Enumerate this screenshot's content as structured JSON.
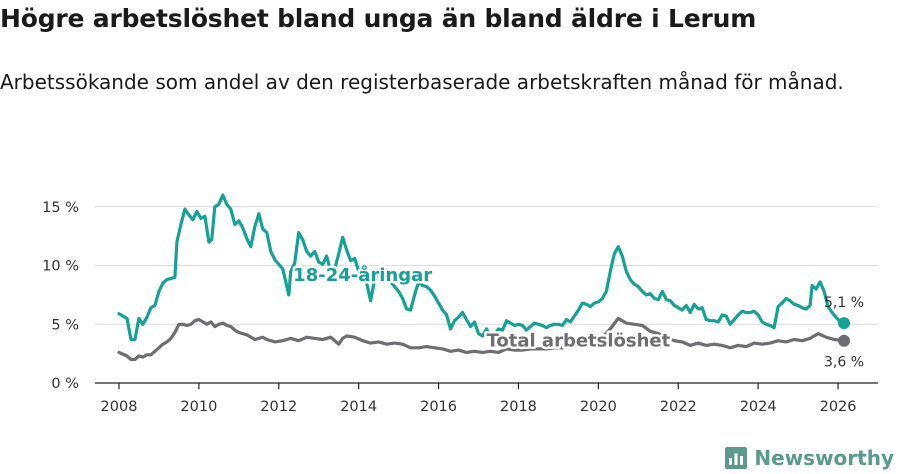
{
  "title": "Högre arbetslöshet bland unga än bland äldre i Lerum",
  "subtitle": "Arbetssökande som andel av den registerbaserade arbetskraften månad för månad.",
  "brand": {
    "name": "Newsworthy",
    "color": "#5a9a8c"
  },
  "chart_data": {
    "type": "line",
    "x_unit": "year",
    "x_ticks": [
      "2008",
      "2010",
      "2012",
      "2014",
      "2016",
      "2018",
      "2020",
      "2022",
      "2024",
      "2026"
    ],
    "y_ticks": [
      "0 %",
      "5 %",
      "10 %",
      "15 %"
    ],
    "xlim": [
      2007.4,
      2027.0
    ],
    "ylim": [
      0,
      16
    ],
    "grid": true,
    "series": [
      {
        "name": "18-24-åringar",
        "color": "#14a295",
        "end_label": "5,1 %",
        "points": [
          [
            2008.0,
            5.9
          ],
          [
            2008.2,
            5.5
          ],
          [
            2008.3,
            3.7
          ],
          [
            2008.4,
            3.7
          ],
          [
            2008.5,
            5.5
          ],
          [
            2008.6,
            5.0
          ],
          [
            2008.7,
            5.6
          ],
          [
            2008.8,
            6.4
          ],
          [
            2008.9,
            6.6
          ],
          [
            2009.0,
            7.8
          ],
          [
            2009.1,
            8.5
          ],
          [
            2009.2,
            8.8
          ],
          [
            2009.4,
            9.0
          ],
          [
            2009.45,
            12.0
          ],
          [
            2009.55,
            13.5
          ],
          [
            2009.65,
            14.8
          ],
          [
            2009.75,
            14.3
          ],
          [
            2009.85,
            13.9
          ],
          [
            2009.95,
            14.6
          ],
          [
            2010.05,
            14.0
          ],
          [
            2010.15,
            14.2
          ],
          [
            2010.25,
            12.0
          ],
          [
            2010.32,
            12.2
          ],
          [
            2010.4,
            15.0
          ],
          [
            2010.5,
            15.2
          ],
          [
            2010.6,
            16.0
          ],
          [
            2010.7,
            15.2
          ],
          [
            2010.8,
            14.8
          ],
          [
            2010.9,
            13.5
          ],
          [
            2011.0,
            13.8
          ],
          [
            2011.1,
            13.2
          ],
          [
            2011.2,
            12.3
          ],
          [
            2011.3,
            11.6
          ],
          [
            2011.4,
            13.3
          ],
          [
            2011.5,
            14.4
          ],
          [
            2011.6,
            13.1
          ],
          [
            2011.7,
            12.8
          ],
          [
            2011.8,
            11.2
          ],
          [
            2011.9,
            10.5
          ],
          [
            2012.0,
            10.1
          ],
          [
            2012.1,
            9.7
          ],
          [
            2012.25,
            7.5
          ],
          [
            2012.3,
            9.5
          ],
          [
            2012.4,
            10.2
          ],
          [
            2012.5,
            12.8
          ],
          [
            2012.6,
            12.2
          ],
          [
            2012.7,
            11.2
          ],
          [
            2012.8,
            10.8
          ],
          [
            2012.9,
            11.2
          ],
          [
            2013.0,
            10.3
          ],
          [
            2013.1,
            10.1
          ],
          [
            2013.2,
            10.8
          ],
          [
            2013.3,
            9.5
          ],
          [
            2013.4,
            9.7
          ],
          [
            2013.5,
            11.0
          ],
          [
            2013.6,
            12.4
          ],
          [
            2013.7,
            11.3
          ],
          [
            2013.8,
            10.4
          ],
          [
            2013.9,
            10.6
          ],
          [
            2014.0,
            9.5
          ],
          [
            2014.1,
            9.2
          ],
          [
            2014.2,
            8.5
          ],
          [
            2014.3,
            7.0
          ],
          [
            2014.4,
            8.8
          ],
          [
            2014.5,
            9.3
          ],
          [
            2014.6,
            9.5
          ],
          [
            2014.7,
            9.3
          ],
          [
            2014.8,
            8.6
          ],
          [
            2014.9,
            8.2
          ],
          [
            2015.0,
            7.8
          ],
          [
            2015.1,
            7.2
          ],
          [
            2015.2,
            6.3
          ],
          [
            2015.3,
            6.2
          ],
          [
            2015.4,
            7.5
          ],
          [
            2015.5,
            8.6
          ],
          [
            2015.6,
            8.3
          ],
          [
            2015.7,
            8.2
          ],
          [
            2015.8,
            7.9
          ],
          [
            2015.9,
            7.4
          ],
          [
            2016.0,
            6.8
          ],
          [
            2016.1,
            6.2
          ],
          [
            2016.2,
            5.8
          ],
          [
            2016.3,
            4.6
          ],
          [
            2016.4,
            5.3
          ],
          [
            2016.5,
            5.6
          ],
          [
            2016.6,
            6.0
          ],
          [
            2016.7,
            5.4
          ],
          [
            2016.8,
            4.8
          ],
          [
            2016.9,
            5.2
          ],
          [
            2017.0,
            4.2
          ],
          [
            2017.1,
            4.0
          ],
          [
            2017.2,
            4.6
          ],
          [
            2017.3,
            4.0
          ],
          [
            2017.4,
            4.1
          ],
          [
            2017.5,
            4.6
          ],
          [
            2017.6,
            4.5
          ],
          [
            2017.7,
            5.3
          ],
          [
            2017.8,
            5.1
          ],
          [
            2017.9,
            4.9
          ],
          [
            2018.0,
            5.0
          ],
          [
            2018.1,
            4.9
          ],
          [
            2018.2,
            4.5
          ],
          [
            2018.3,
            4.8
          ],
          [
            2018.4,
            5.1
          ],
          [
            2018.5,
            5.0
          ],
          [
            2018.6,
            4.9
          ],
          [
            2018.7,
            4.7
          ],
          [
            2018.8,
            4.9
          ],
          [
            2018.9,
            5.0
          ],
          [
            2019.0,
            5.0
          ],
          [
            2019.1,
            4.9
          ],
          [
            2019.2,
            5.4
          ],
          [
            2019.3,
            5.2
          ],
          [
            2019.4,
            5.7
          ],
          [
            2019.5,
            6.2
          ],
          [
            2019.6,
            6.8
          ],
          [
            2019.7,
            6.7
          ],
          [
            2019.8,
            6.5
          ],
          [
            2019.9,
            6.8
          ],
          [
            2020.0,
            6.9
          ],
          [
            2020.1,
            7.2
          ],
          [
            2020.2,
            7.8
          ],
          [
            2020.3,
            9.5
          ],
          [
            2020.4,
            11.0
          ],
          [
            2020.5,
            11.6
          ],
          [
            2020.6,
            10.8
          ],
          [
            2020.7,
            9.5
          ],
          [
            2020.8,
            8.8
          ],
          [
            2020.9,
            8.4
          ],
          [
            2021.0,
            8.2
          ],
          [
            2021.1,
            7.8
          ],
          [
            2021.2,
            7.5
          ],
          [
            2021.3,
            7.6
          ],
          [
            2021.4,
            7.2
          ],
          [
            2021.5,
            7.1
          ],
          [
            2021.6,
            7.8
          ],
          [
            2021.7,
            7.1
          ],
          [
            2021.8,
            7.0
          ],
          [
            2021.9,
            6.6
          ],
          [
            2022.0,
            6.4
          ],
          [
            2022.1,
            6.2
          ],
          [
            2022.2,
            6.6
          ],
          [
            2022.3,
            6.0
          ],
          [
            2022.4,
            6.7
          ],
          [
            2022.5,
            6.3
          ],
          [
            2022.6,
            6.4
          ],
          [
            2022.7,
            5.4
          ],
          [
            2022.8,
            5.3
          ],
          [
            2022.9,
            5.3
          ],
          [
            2023.0,
            5.2
          ],
          [
            2023.1,
            5.8
          ],
          [
            2023.2,
            5.7
          ],
          [
            2023.3,
            5.0
          ],
          [
            2023.4,
            5.4
          ],
          [
            2023.5,
            5.8
          ],
          [
            2023.6,
            6.1
          ],
          [
            2023.7,
            6.0
          ],
          [
            2023.8,
            6.0
          ],
          [
            2023.9,
            6.1
          ],
          [
            2024.0,
            5.8
          ],
          [
            2024.1,
            5.2
          ],
          [
            2024.2,
            5.0
          ],
          [
            2024.3,
            4.9
          ],
          [
            2024.4,
            4.7
          ],
          [
            2024.5,
            6.5
          ],
          [
            2024.6,
            6.8
          ],
          [
            2024.7,
            7.2
          ],
          [
            2024.8,
            7.0
          ],
          [
            2024.9,
            6.7
          ],
          [
            2025.0,
            6.6
          ],
          [
            2025.1,
            6.4
          ],
          [
            2025.2,
            6.3
          ],
          [
            2025.3,
            6.6
          ],
          [
            2025.35,
            8.3
          ],
          [
            2025.45,
            8.0
          ],
          [
            2025.55,
            8.6
          ],
          [
            2025.65,
            7.8
          ],
          [
            2025.75,
            6.5
          ],
          [
            2025.85,
            6.0
          ],
          [
            2026.0,
            5.4
          ],
          [
            2026.15,
            5.1
          ]
        ]
      },
      {
        "name": "Total arbetslöshet",
        "color": "#6d6d72",
        "end_label": "3,6 %",
        "points": [
          [
            2008.0,
            2.6
          ],
          [
            2008.2,
            2.3
          ],
          [
            2008.3,
            2.0
          ],
          [
            2008.4,
            2.0
          ],
          [
            2008.5,
            2.3
          ],
          [
            2008.6,
            2.2
          ],
          [
            2008.7,
            2.4
          ],
          [
            2008.8,
            2.4
          ],
          [
            2008.9,
            2.7
          ],
          [
            2009.0,
            3.0
          ],
          [
            2009.1,
            3.3
          ],
          [
            2009.2,
            3.5
          ],
          [
            2009.3,
            3.8
          ],
          [
            2009.4,
            4.3
          ],
          [
            2009.5,
            5.0
          ],
          [
            2009.6,
            5.0
          ],
          [
            2009.7,
            4.9
          ],
          [
            2009.8,
            5.0
          ],
          [
            2009.9,
            5.3
          ],
          [
            2010.0,
            5.4
          ],
          [
            2010.1,
            5.2
          ],
          [
            2010.2,
            5.0
          ],
          [
            2010.3,
            5.2
          ],
          [
            2010.4,
            4.8
          ],
          [
            2010.5,
            5.0
          ],
          [
            2010.6,
            5.1
          ],
          [
            2010.7,
            4.9
          ],
          [
            2010.8,
            4.8
          ],
          [
            2010.9,
            4.5
          ],
          [
            2011.0,
            4.3
          ],
          [
            2011.2,
            4.1
          ],
          [
            2011.4,
            3.7
          ],
          [
            2011.5,
            3.8
          ],
          [
            2011.6,
            3.9
          ],
          [
            2011.7,
            3.7
          ],
          [
            2011.9,
            3.5
          ],
          [
            2012.1,
            3.6
          ],
          [
            2012.3,
            3.8
          ],
          [
            2012.5,
            3.6
          ],
          [
            2012.7,
            3.9
          ],
          [
            2012.9,
            3.8
          ],
          [
            2013.1,
            3.7
          ],
          [
            2013.3,
            3.9
          ],
          [
            2013.5,
            3.3
          ],
          [
            2013.6,
            3.8
          ],
          [
            2013.7,
            4.0
          ],
          [
            2013.9,
            3.9
          ],
          [
            2014.1,
            3.6
          ],
          [
            2014.3,
            3.4
          ],
          [
            2014.5,
            3.5
          ],
          [
            2014.7,
            3.3
          ],
          [
            2014.9,
            3.4
          ],
          [
            2015.1,
            3.3
          ],
          [
            2015.3,
            3.0
          ],
          [
            2015.5,
            3.0
          ],
          [
            2015.7,
            3.1
          ],
          [
            2015.9,
            3.0
          ],
          [
            2016.1,
            2.9
          ],
          [
            2016.3,
            2.7
          ],
          [
            2016.5,
            2.8
          ],
          [
            2016.7,
            2.6
          ],
          [
            2016.9,
            2.7
          ],
          [
            2017.1,
            2.6
          ],
          [
            2017.3,
            2.7
          ],
          [
            2017.5,
            2.6
          ],
          [
            2017.7,
            2.9
          ],
          [
            2017.9,
            2.8
          ],
          [
            2018.1,
            2.8
          ],
          [
            2018.3,
            2.9
          ],
          [
            2018.5,
            2.9
          ],
          [
            2018.7,
            2.9
          ],
          [
            2018.9,
            3.0
          ],
          [
            2019.1,
            3.0
          ],
          [
            2019.3,
            3.2
          ],
          [
            2019.5,
            3.4
          ],
          [
            2019.7,
            3.6
          ],
          [
            2019.9,
            3.7
          ],
          [
            2020.1,
            3.9
          ],
          [
            2020.3,
            4.6
          ],
          [
            2020.5,
            5.5
          ],
          [
            2020.7,
            5.1
          ],
          [
            2020.9,
            5.0
          ],
          [
            2021.1,
            4.9
          ],
          [
            2021.3,
            4.4
          ],
          [
            2021.5,
            4.2
          ],
          [
            2021.7,
            3.9
          ],
          [
            2021.9,
            3.6
          ],
          [
            2022.1,
            3.5
          ],
          [
            2022.3,
            3.2
          ],
          [
            2022.5,
            3.4
          ],
          [
            2022.7,
            3.2
          ],
          [
            2022.9,
            3.3
          ],
          [
            2023.1,
            3.2
          ],
          [
            2023.3,
            3.0
          ],
          [
            2023.5,
            3.2
          ],
          [
            2023.7,
            3.1
          ],
          [
            2023.9,
            3.4
          ],
          [
            2024.1,
            3.3
          ],
          [
            2024.3,
            3.4
          ],
          [
            2024.5,
            3.6
          ],
          [
            2024.7,
            3.5
          ],
          [
            2024.9,
            3.7
          ],
          [
            2025.1,
            3.6
          ],
          [
            2025.3,
            3.8
          ],
          [
            2025.5,
            4.2
          ],
          [
            2025.7,
            3.9
          ],
          [
            2025.9,
            3.7
          ],
          [
            2026.15,
            3.6
          ]
        ]
      }
    ],
    "annotations": [
      {
        "label": "18-24-åringar",
        "series": 0,
        "x": 2014.1,
        "y": 9.2
      },
      {
        "label": "Total arbetslöshet",
        "series": 1,
        "x": 2019.5,
        "y": 3.6
      }
    ]
  }
}
